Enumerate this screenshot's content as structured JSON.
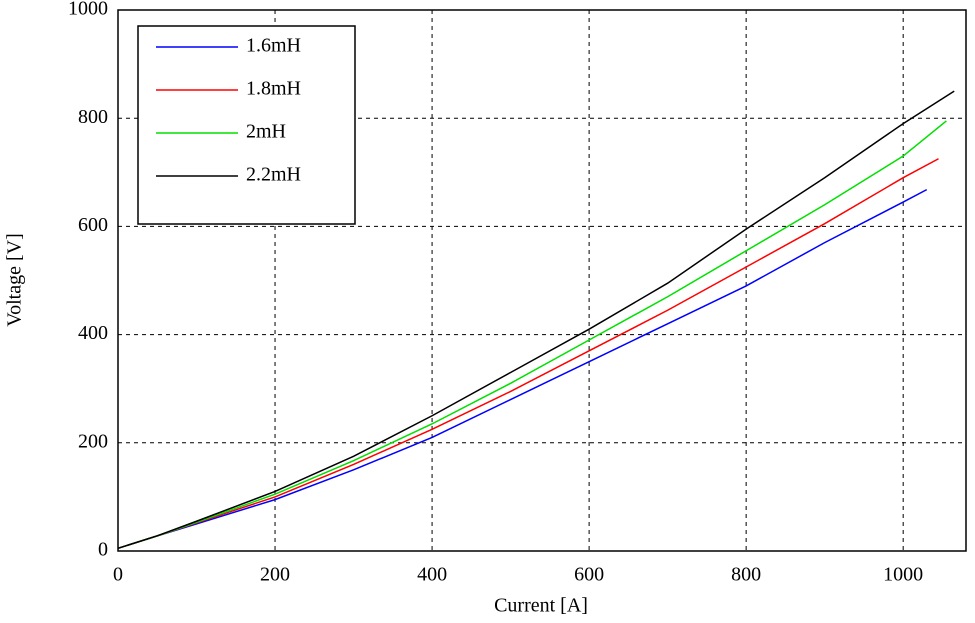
{
  "chart_data": {
    "type": "line",
    "x_label": "Current [A]",
    "y_label": "Voltage [V]",
    "xlim": [
      0,
      1080
    ],
    "ylim": [
      0,
      1000
    ],
    "xticks": [
      0,
      200,
      400,
      600,
      800,
      1000
    ],
    "yticks": [
      0,
      200,
      400,
      600,
      800,
      1000
    ],
    "grid": true,
    "legend": "upper-left",
    "series": [
      {
        "name": "1.6mH",
        "color": "#0000ff",
        "x": [
          0,
          50,
          100,
          200,
          300,
          400,
          500,
          600,
          700,
          800,
          900,
          1000,
          1030
        ],
        "values": [
          5,
          28,
          50,
          95,
          150,
          210,
          280,
          350,
          420,
          490,
          570,
          645,
          668
        ]
      },
      {
        "name": "1.8mH",
        "color": "#ff0000",
        "x": [
          0,
          50,
          100,
          200,
          300,
          400,
          500,
          600,
          700,
          800,
          900,
          1000,
          1045
        ],
        "values": [
          5,
          28,
          52,
          100,
          160,
          225,
          295,
          370,
          445,
          525,
          605,
          690,
          725
        ]
      },
      {
        "name": "2mH",
        "color": "#00e000",
        "x": [
          0,
          50,
          100,
          200,
          300,
          400,
          500,
          600,
          700,
          800,
          900,
          1000,
          1055
        ],
        "values": [
          5,
          28,
          53,
          105,
          167,
          235,
          310,
          390,
          470,
          555,
          640,
          730,
          795
        ]
      },
      {
        "name": "2.2mH",
        "color": "#000000",
        "x": [
          0,
          50,
          100,
          200,
          300,
          400,
          500,
          600,
          700,
          800,
          900,
          1000,
          1065
        ],
        "values": [
          5,
          28,
          55,
          110,
          175,
          250,
          330,
          410,
          495,
          595,
          690,
          790,
          850
        ]
      }
    ]
  }
}
